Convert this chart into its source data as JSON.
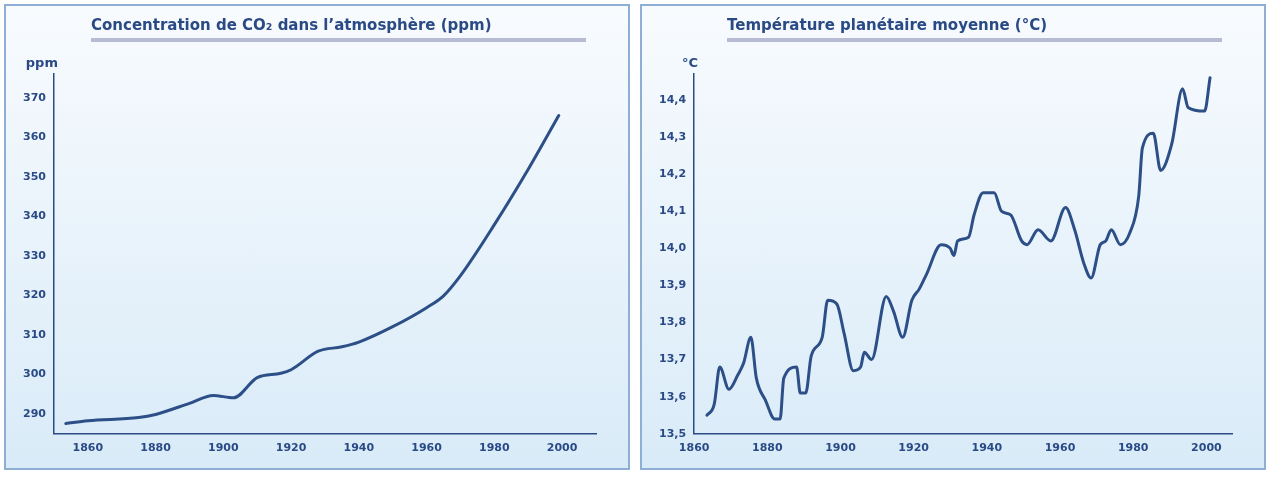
{
  "chart_data": [
    {
      "type": "line",
      "title": "Concentration de CO₂ dans l’atmosphère (ppm)",
      "ylabel": "ppm",
      "xlim": [
        1850,
        2010
      ],
      "xticks": [
        1860,
        1880,
        1900,
        1920,
        1940,
        1960,
        1980,
        2000
      ],
      "ylim": [
        285,
        376
      ],
      "yticks": [
        290,
        300,
        310,
        320,
        330,
        340,
        350,
        360,
        370
      ],
      "grid": false,
      "legend": false,
      "marker": "none",
      "line_style": "solid",
      "series": [
        {
          "color": "#2d4f87",
          "x": [
            1853.5,
            1860,
            1875,
            1880,
            1890,
            1897,
            1903,
            1910,
            1917,
            1920,
            1928,
            1935,
            1940,
            1950,
            1960,
            1965,
            1970,
            1980,
            1990,
            1999
          ],
          "values": [
            287.6,
            288.3,
            289.1,
            289.9,
            292.7,
            294.7,
            294.1,
            299.2,
            300.3,
            301.2,
            305.9,
            307,
            308.2,
            312.1,
            316.9,
            319.9,
            325,
            337.9,
            351.9,
            365.5
          ]
        }
      ]
    },
    {
      "type": "line",
      "title": "Température planétaire moyenne (°C)",
      "ylabel": "°C",
      "xlim": [
        1860,
        2007
      ],
      "xticks": [
        1860,
        1880,
        1900,
        1920,
        1940,
        1960,
        1980,
        2000
      ],
      "ylim": [
        13.5,
        14.47
      ],
      "yticks": [
        {
          "value": 13.5,
          "label": "13,5"
        },
        {
          "value": 13.6,
          "label": "13,6"
        },
        {
          "value": 13.7,
          "label": "13,7"
        },
        {
          "value": 13.8,
          "label": "13,8"
        },
        {
          "value": 13.9,
          "label": "13,9"
        },
        {
          "value": 14.0,
          "label": "14,0"
        },
        {
          "value": 14.1,
          "label": "14,1"
        },
        {
          "value": 14.2,
          "label": "14,2"
        },
        {
          "value": 14.3,
          "label": "14,3"
        },
        {
          "value": 14.4,
          "label": "14,4"
        }
      ],
      "grid": false,
      "legend": false,
      "marker": "none",
      "line_style": "solid",
      "series": [
        {
          "color": "#2d4f87",
          "x": [
            1863.5,
            1865.5,
            1867,
            1869.5,
            1872,
            1873.5,
            1875.5,
            1877,
            1879.5,
            1882,
            1883.5,
            1884.5,
            1888,
            1889,
            1890.5,
            1892,
            1895,
            1896.5,
            1899,
            1901,
            1903.5,
            1905.5,
            1906.5,
            1908.5,
            1912.5,
            1914.5,
            1917,
            1919.5,
            1921.5,
            1923.5,
            1927.5,
            1930,
            1931,
            1932,
            1935,
            1936.5,
            1939,
            1942,
            1944,
            1946.5,
            1949.5,
            1951,
            1954,
            1957.5,
            1961.5,
            1964,
            1966.5,
            1968.5,
            1971,
            1972.5,
            1974,
            1976.5,
            1979,
            1981.5,
            1982.5,
            1985.5,
            1987.5,
            1990.5,
            1993.5,
            1995,
            1999.5,
            2001
          ],
          "values": [
            13.55,
            13.58,
            13.68,
            13.62,
            13.66,
            13.69,
            13.76,
            13.65,
            13.59,
            13.54,
            13.54,
            13.65,
            13.68,
            13.61,
            13.61,
            13.71,
            13.76,
            13.86,
            13.85,
            13.77,
            13.67,
            13.68,
            13.72,
            13.7,
            13.87,
            13.83,
            13.76,
            13.86,
            13.89,
            13.93,
            14.01,
            14.0,
            13.98,
            14.02,
            14.03,
            14.09,
            14.15,
            14.15,
            14.1,
            14.09,
            14.02,
            14.01,
            14.05,
            14.02,
            14.11,
            14.05,
            13.96,
            13.92,
            14.01,
            14.02,
            14.05,
            14.01,
            14.04,
            14.14,
            14.27,
            14.31,
            14.21,
            14.28,
            14.43,
            14.38,
            14.37,
            14.46
          ]
        }
      ]
    }
  ]
}
